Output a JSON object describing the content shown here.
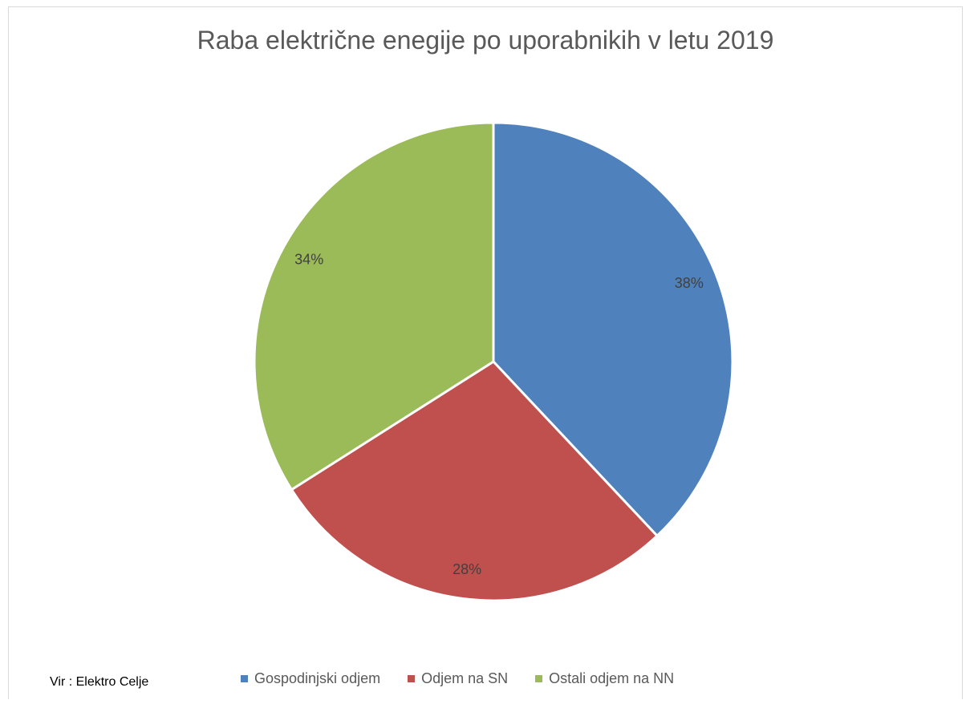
{
  "chart_data": {
    "type": "pie",
    "title": "Raba električne enegije po uporabnikih v letu 2019",
    "categories": [
      "Gospodinjski odjem",
      "Odjem na SN",
      "Ostali odjem na NN"
    ],
    "values": [
      38,
      28,
      34
    ],
    "labels": [
      "38%",
      "28%",
      "34%"
    ],
    "colors": [
      "#4f81bd",
      "#c0504d",
      "#9bbb59"
    ],
    "legend_position": "bottom"
  },
  "source_note": "Vir : Elektro Celje"
}
